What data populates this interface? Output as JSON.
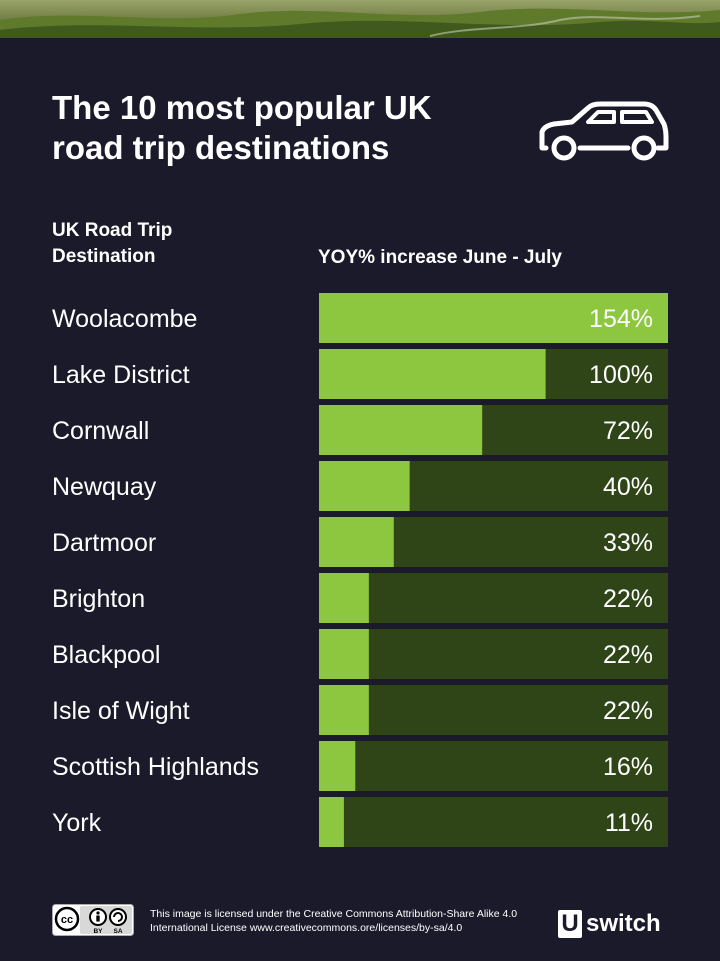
{
  "header": {
    "title": "The 10 most popular UK road trip destinations",
    "car_icon": "car-icon"
  },
  "columns": {
    "left": "UK Road Trip Destination",
    "right": "YOY% increase June - July"
  },
  "colors": {
    "background": "#1b1a2a",
    "bar_fill": "#8dc63f",
    "bar_track": "#2f4517",
    "text": "#ffffff"
  },
  "chart_data": {
    "type": "bar",
    "orientation": "horizontal",
    "categories": [
      "Woolacombe",
      "Lake District",
      "Cornwall",
      "Newquay",
      "Dartmoor",
      "Brighton",
      "Blackpool",
      "Isle of Wight",
      "Scottish Highlands",
      "York"
    ],
    "values": [
      154,
      100,
      72,
      40,
      33,
      22,
      22,
      22,
      16,
      11
    ],
    "value_labels": [
      "154%",
      "100%",
      "72%",
      "40%",
      "33%",
      "22%",
      "22%",
      "22%",
      "16%",
      "11%"
    ],
    "xlim": [
      0,
      154
    ],
    "xlabel": "YOY% increase June - July",
    "ylabel": "UK Road Trip Destination"
  },
  "footer": {
    "license_text": "This image is licensed under the Creative Commons Attribution-Share Alike 4.0 International License www.creativecommons.ore/licenses/by-sa/4.0",
    "cc_badge": {
      "cc": "cc",
      "by": "BY",
      "sa": "SA"
    },
    "logo": {
      "box": "U",
      "word": "switch"
    }
  }
}
